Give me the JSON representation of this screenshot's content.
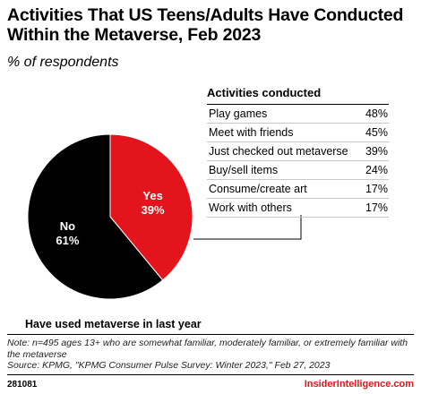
{
  "title": "Activities That US Teens/Adults Have Conducted Within the Metaverse, Feb 2023",
  "subtitle": "% of respondents",
  "chart_data": [
    {
      "type": "pie",
      "xlabel": "Have used metaverse in last year",
      "categories": [
        "Yes",
        "No"
      ],
      "values": [
        39,
        61
      ],
      "value_labels": [
        "39%",
        "61%"
      ],
      "colors": [
        "#e3141b",
        "#000000"
      ],
      "label_colors": [
        "#ffffff",
        "#ffffff"
      ]
    },
    {
      "type": "table",
      "title": "Activities conducted",
      "rows": [
        {
          "label": "Play games",
          "value": 48,
          "value_text": "48%"
        },
        {
          "label": "Meet with friends",
          "value": 45,
          "value_text": "45%"
        },
        {
          "label": "Just checked out metaverse",
          "value": 39,
          "value_text": "39%"
        },
        {
          "label": "Buy/sell items",
          "value": 24,
          "value_text": "24%"
        },
        {
          "label": "Consume/create art",
          "value": 17,
          "value_text": "17%"
        },
        {
          "label": "Work with others",
          "value": 17,
          "value_text": "17%"
        }
      ]
    }
  ],
  "footer": {
    "note": "Note: n=495 ages 13+ who are somewhat familiar, moderately familiar, or extremely familiar with the metaverse",
    "source": "Source: KPMG, \"KPMG Consumer Pulse Survey: Winter 2023,\" Feb 27, 2023",
    "chart_id": "281081",
    "brand": "InsiderIntelligence.com"
  }
}
